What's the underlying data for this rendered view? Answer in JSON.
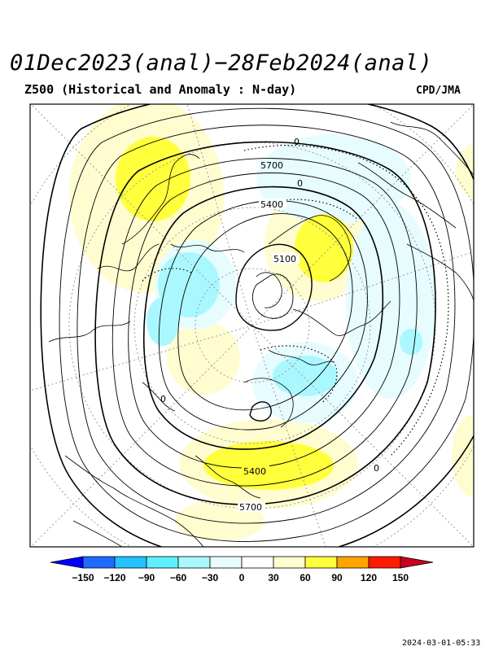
{
  "title": "01Dec2023(anal)−28Feb2024(anal)",
  "subtitle": "Z500 (Historical and Anomaly : N-day)",
  "credit": "CPD/JMA",
  "timestamp": "2024-03-01-05:33",
  "map": {
    "projection": "north-polar-stereographic",
    "variable": "Z500 height contours with anomaly shading",
    "contour_labels": [
      "5700",
      "5400",
      "5100",
      "0",
      "0",
      "0",
      "0",
      "5400",
      "5700"
    ],
    "anomaly_regions": [
      {
        "sign": "positive",
        "level": 60,
        "region": "Eastern Siberia / Okhotsk"
      },
      {
        "sign": "positive",
        "level": 60,
        "region": "Greenland"
      },
      {
        "sign": "positive",
        "level": 60,
        "region": "North Pacific"
      },
      {
        "sign": "negative",
        "level": -60,
        "region": "Western Russia"
      },
      {
        "sign": "negative",
        "level": -60,
        "region": "Eastern Canada / Hudson Bay"
      },
      {
        "sign": "negative",
        "level": -30,
        "region": "Atlantic"
      }
    ]
  },
  "colorbar": {
    "ticks": [
      "−150",
      "−120",
      "−90",
      "−60",
      "−30",
      "0",
      "30",
      "60",
      "90",
      "120",
      "150"
    ],
    "colors": [
      "#0000ff",
      "#1e6cff",
      "#22c3ff",
      "#5ef0ff",
      "#aaf8ff",
      "#e6fcff",
      "#ffffff",
      "#fffdd0",
      "#ffff3c",
      "#ffa500",
      "#ff1c00",
      "#c8001e"
    ]
  }
}
